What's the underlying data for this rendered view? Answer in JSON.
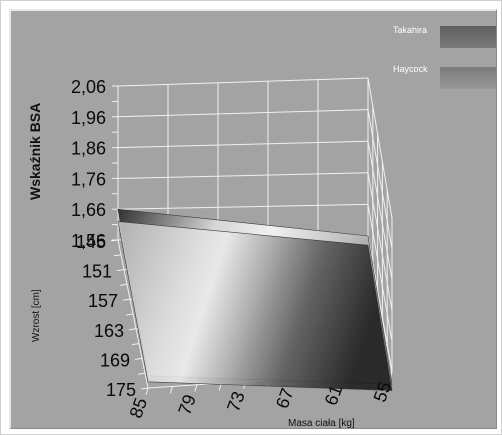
{
  "chart_data": {
    "type": "surface",
    "zlabel": "Wskaźnik BSA",
    "ylabel": "Wzrost [cm]",
    "xlabel": "Masa ciała [kg]",
    "z_ticks": [
      "2,06",
      "1,96",
      "1,86",
      "1,76",
      "1,66",
      "1,56"
    ],
    "y_ticks": [
      "145",
      "151",
      "157",
      "163",
      "169",
      "175"
    ],
    "x_ticks": [
      "85",
      "79",
      "73",
      "67",
      "61",
      "55"
    ],
    "zlim": [
      1.56,
      2.06
    ],
    "ylim": [
      145,
      175
    ],
    "xlim": [
      55,
      85
    ],
    "grid": true,
    "legend_position": "top-right",
    "series": [
      {
        "name": "Takahira",
        "color": "#6d6d6d",
        "corner_values": [
          {
            "mass": 85,
            "height": 145,
            "bsa": 1.66
          },
          {
            "mass": 55,
            "height": 145,
            "bsa": 1.56
          },
          {
            "mass": 55,
            "height": 175,
            "bsa": 1.52
          },
          {
            "mass": 85,
            "height": 175,
            "bsa": 1.6
          }
        ]
      },
      {
        "name": "Haycock",
        "color": "#8a8a8a",
        "corner_values": [
          {
            "mass": 85,
            "height": 145,
            "bsa": 1.62
          },
          {
            "mass": 55,
            "height": 145,
            "bsa": 1.53
          },
          {
            "mass": 55,
            "height": 175,
            "bsa": 1.5
          },
          {
            "mass": 85,
            "height": 175,
            "bsa": 1.58
          }
        ]
      }
    ]
  }
}
